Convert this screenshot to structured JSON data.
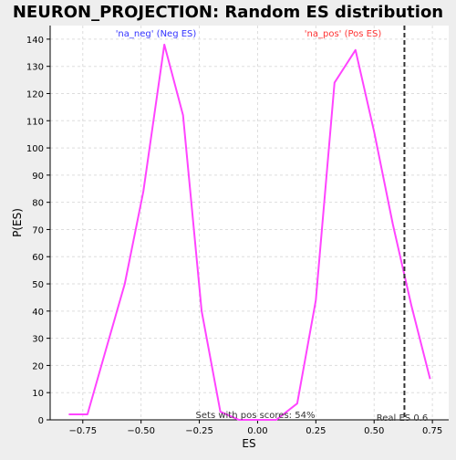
{
  "chart_data": {
    "type": "line",
    "title": "NEURON_PROJECTION: Random ES distribution",
    "xlabel": "ES",
    "ylabel": "P(ES)",
    "xlim": [
      -0.89,
      0.82
    ],
    "ylim": [
      0,
      145
    ],
    "x_ticks": [
      -0.75,
      -0.5,
      -0.25,
      0.0,
      0.25,
      0.5,
      0.75
    ],
    "x_tick_labels": [
      "−0.75",
      "−0.50",
      "−0.25",
      "0.00",
      "0.25",
      "0.50",
      "0.75"
    ],
    "y_ticks": [
      0,
      10,
      20,
      30,
      40,
      50,
      60,
      70,
      80,
      90,
      100,
      110,
      120,
      130,
      140
    ],
    "y_tick_labels": [
      "0",
      "10",
      "20",
      "30",
      "40",
      "50",
      "60",
      "70",
      "80",
      "90",
      "100",
      "110",
      "120",
      "130",
      "140"
    ],
    "grid": true,
    "series": [
      {
        "color": "#ff44ff",
        "x": [
          -0.81,
          -0.73,
          -0.65,
          -0.57,
          -0.49,
          -0.4,
          -0.32,
          -0.24,
          -0.16,
          -0.08,
          0.0,
          0.08,
          0.17,
          0.25,
          0.33,
          0.42,
          0.5,
          0.58,
          0.66,
          0.74
        ],
        "y": [
          2,
          2,
          26,
          50,
          84,
          138,
          112,
          40,
          3,
          0,
          0,
          0,
          6,
          44,
          124,
          136,
          106,
          72,
          42,
          15
        ]
      }
    ],
    "annotations": {
      "neg_label": "'na_neg' (Neg ES)",
      "pos_label": "'na_pos' (Pos ES)",
      "neg_color": "#3333ff",
      "pos_color": "#ff3333",
      "sets_with_pos": "Sets with pos scores: 54%",
      "real_es_label": "Real ES 0.6",
      "real_es_value": 0.63
    }
  }
}
